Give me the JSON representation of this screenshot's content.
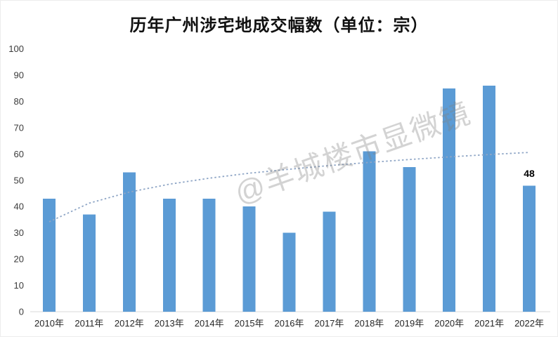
{
  "frame": {
    "background": "#ffffff",
    "border_color": "#ededed"
  },
  "chart_data": {
    "type": "bar",
    "title": "历年广州涉宅地成交幅数（单位：宗）",
    "categories": [
      "2010年",
      "2011年",
      "2012年",
      "2013年",
      "2014年",
      "2015年",
      "2016年",
      "2017年",
      "2018年",
      "2019年",
      "2020年",
      "2021年",
      "2022年"
    ],
    "values": [
      43,
      37,
      53,
      43,
      43,
      40,
      30,
      38,
      61,
      55,
      85,
      86,
      48
    ],
    "xlabel": "",
    "ylabel": "",
    "ylim": [
      0,
      100
    ],
    "yticks": [
      "0",
      "10",
      "20",
      "30",
      "40",
      "50",
      "60",
      "70",
      "80",
      "90",
      "100"
    ],
    "grid": false,
    "legend": "none",
    "bar_color": "#5B9BD5",
    "axis_line_color": "#D9D9D9",
    "tick_label_color": "#3b3b3b",
    "title_color": "#111111",
    "data_labels": [
      {
        "category": "2022年",
        "index": 12,
        "text": "48"
      }
    ],
    "trendline": {
      "type": "logarithmic",
      "style": "dotted",
      "color": "#8FA6C6",
      "values": [
        34.2,
        41.3,
        45.5,
        48.5,
        50.8,
        52.7,
        54.2,
        55.6,
        56.8,
        57.9,
        58.9,
        59.8,
        60.6
      ]
    }
  },
  "watermark": {
    "text": "@羊城楼市显微镜",
    "color": "rgba(128,128,128,0.35)",
    "rotation_deg": -19.5
  }
}
